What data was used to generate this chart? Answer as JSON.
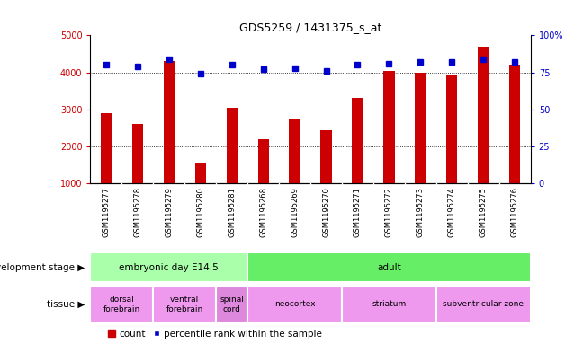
{
  "title": "GDS5259 / 1431375_s_at",
  "samples": [
    "GSM1195277",
    "GSM1195278",
    "GSM1195279",
    "GSM1195280",
    "GSM1195281",
    "GSM1195268",
    "GSM1195269",
    "GSM1195270",
    "GSM1195271",
    "GSM1195272",
    "GSM1195273",
    "GSM1195274",
    "GSM1195275",
    "GSM1195276"
  ],
  "counts": [
    2900,
    2600,
    4300,
    1550,
    3050,
    2200,
    2720,
    2430,
    3300,
    4050,
    4000,
    3950,
    4700,
    4200
  ],
  "percentiles": [
    80,
    79,
    84,
    74,
    80,
    77,
    78,
    76,
    80,
    81,
    82,
    82,
    84,
    82
  ],
  "ylim_left": [
    1000,
    5000
  ],
  "ylim_right": [
    0,
    100
  ],
  "yticks_left": [
    1000,
    2000,
    3000,
    4000,
    5000
  ],
  "yticks_right": [
    0,
    25,
    50,
    75,
    100
  ],
  "bar_color": "#cc0000",
  "dot_color": "#0000cc",
  "grid_color": "#000000",
  "dev_stage_groups": [
    {
      "label": "embryonic day E14.5",
      "start": 0,
      "end": 4,
      "color": "#aaffaa"
    },
    {
      "label": "adult",
      "start": 5,
      "end": 13,
      "color": "#66ee66"
    }
  ],
  "tissue_groups": [
    {
      "label": "dorsal\nforebrain",
      "start": 0,
      "end": 1,
      "color": "#ee99ee"
    },
    {
      "label": "ventral\nforebrain",
      "start": 2,
      "end": 3,
      "color": "#ee99ee"
    },
    {
      "label": "spinal\ncord",
      "start": 4,
      "end": 4,
      "color": "#dd88dd"
    },
    {
      "label": "neocortex",
      "start": 5,
      "end": 7,
      "color": "#ee99ee"
    },
    {
      "label": "striatum",
      "start": 8,
      "end": 10,
      "color": "#ee99ee"
    },
    {
      "label": "subventricular zone",
      "start": 11,
      "end": 13,
      "color": "#ee99ee"
    }
  ],
  "dev_stage_label": "development stage",
  "tissue_label": "tissue",
  "legend_count_label": "count",
  "legend_pct_label": "percentile rank within the sample",
  "bg_color": "#ffffff",
  "tick_area_color": "#c8c8c8"
}
